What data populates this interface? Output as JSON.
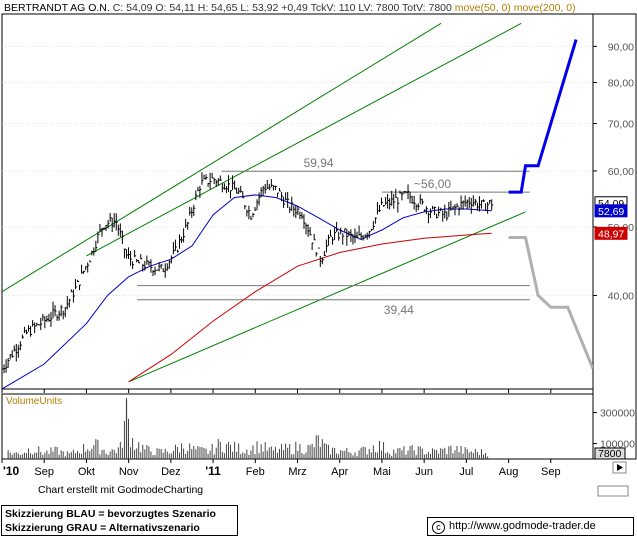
{
  "header": {
    "title": "BERTRANDT AG O.N.",
    "quote_parts": [
      "C: 54,09",
      "O: 54,11",
      "H: 54,65",
      "L: 53,92",
      "+0,49",
      "TckV: 110",
      "LV: 7800",
      "TotV: 7800"
    ],
    "ma_labels": [
      "move(50, 0)",
      "move(200, 0)"
    ]
  },
  "footer": {
    "credit": "Chart erstellt mit GodmodeCharting",
    "legend_blue": "Skizzierung BLAU = bevorzugtes Szenario",
    "legend_grey": "Skizzierung GRAU = Alternativszenario",
    "url": "http://www.godmode-trader.de",
    "copyright_symbol": "c"
  },
  "colors": {
    "price": "#000000",
    "ma50": "#0000cc",
    "ma200": "#cc0000",
    "channel": "#008000",
    "hlines": "#777777",
    "scenario_blue": "#0000ee",
    "scenario_grey": "#b0b0b0",
    "grid": "#d0d0d0",
    "header_ma": "#b08000",
    "volume_label": "#b08000"
  },
  "chart_data": {
    "type": "line",
    "y_scale": "log",
    "y_ticks": [
      "90,00",
      "80,00",
      "70,00",
      "60,00",
      "50,00",
      "40,00"
    ],
    "y_tick_values": [
      90,
      80,
      70,
      60,
      50,
      40
    ],
    "x_labels": [
      "'10",
      "Sep",
      "Okt",
      "Nov",
      "Dez",
      "'11",
      "Feb",
      "Mrz",
      "Apr",
      "Mai",
      "Jun",
      "Jul",
      "Aug",
      "Sep"
    ],
    "x_label_months": [
      0,
      1,
      2,
      3,
      4,
      5,
      6,
      7,
      8,
      9,
      10,
      11,
      12,
      13
    ],
    "x_range_months": [
      0,
      14
    ],
    "price_series": {
      "name": "BERTRANDT AG O.N.",
      "x": [
        0.0,
        0.3,
        0.6,
        0.9,
        1.2,
        1.5,
        1.8,
        2.1,
        2.4,
        2.7,
        2.95,
        3.2,
        3.5,
        3.8,
        4.1,
        4.4,
        4.7,
        5.0,
        5.3,
        5.6,
        5.9,
        6.2,
        6.5,
        6.8,
        7.1,
        7.35,
        7.55,
        7.8,
        8.1,
        8.4,
        8.7,
        9.0,
        9.3,
        9.6,
        9.9,
        10.2,
        10.5,
        10.8,
        11.1,
        11.4,
        11.6
      ],
      "y": [
        31.5,
        33.5,
        35.5,
        36.5,
        37.5,
        38.5,
        41.5,
        45.5,
        50.5,
        51.0,
        45.5,
        44.5,
        44.0,
        43.5,
        46.0,
        50.5,
        57.5,
        58.5,
        57.5,
        56.0,
        52.0,
        57.0,
        56.5,
        53.5,
        52.5,
        48.0,
        45.0,
        48.5,
        49.0,
        48.0,
        49.5,
        53.5,
        54.5,
        55.5,
        54.0,
        52.5,
        52.0,
        53.5,
        54.5,
        53.5,
        54.09
      ]
    },
    "series": [
      {
        "name": "move(50, 0)",
        "x": [
          0.0,
          1.0,
          2.0,
          2.5,
          3.0,
          3.5,
          4.0,
          4.5,
          5.0,
          5.5,
          6.0,
          6.5,
          7.0,
          7.5,
          8.0,
          8.5,
          9.0,
          9.5,
          10.0,
          10.5,
          11.0,
          11.6
        ],
        "y": [
          29.5,
          32.0,
          36.5,
          40.0,
          42.5,
          44.0,
          45.0,
          47.0,
          52.0,
          55.0,
          55.5,
          55.0,
          53.5,
          51.5,
          49.5,
          48.0,
          49.5,
          51.5,
          52.5,
          53.0,
          53.0,
          52.69
        ]
      },
      {
        "name": "move(200, 0)",
        "x": [
          3.0,
          4.0,
          5.0,
          6.0,
          7.0,
          8.0,
          9.0,
          10.0,
          11.0,
          11.6
        ],
        "y": [
          30.2,
          33.0,
          36.8,
          40.5,
          44.0,
          46.0,
          47.3,
          48.2,
          48.7,
          48.97
        ]
      }
    ],
    "channel_lines": [
      {
        "from": [
          0.0,
          40.5
        ],
        "to": [
          10.4,
          97.0
        ]
      },
      {
        "from": [
          2.0,
          45.5
        ],
        "to": [
          12.3,
          97.0
        ]
      },
      {
        "from": [
          3.0,
          30.2
        ],
        "to": [
          12.4,
          52.5
        ]
      }
    ],
    "horizontal_levels": [
      {
        "value": 59.94,
        "label": "59,94",
        "x_from": 5.2,
        "x_to": 12.5
      },
      {
        "value": 56.0,
        "label": "~56,00",
        "x_from": 9.0,
        "x_to": 12.5
      },
      {
        "value": 41.3,
        "label": "",
        "x_from": 3.2,
        "x_to": 12.5
      },
      {
        "value": 39.44,
        "label": "39,44",
        "x_from": 3.2,
        "x_to": 12.5
      }
    ],
    "scenario_blue": {
      "x": [
        12.0,
        12.3,
        12.4,
        12.7,
        13.6
      ],
      "y": [
        56.0,
        56.0,
        61.0,
        61.0,
        92.0
      ]
    },
    "scenario_grey": {
      "x": [
        12.0,
        12.4,
        12.7,
        13.0,
        13.4,
        14.0
      ],
      "y": [
        48.3,
        48.3,
        40.0,
        38.5,
        38.5,
        31.5
      ]
    },
    "value_labels": [
      {
        "text": "54,09",
        "value": 54.09,
        "bg": "#ffffff",
        "fg": "#000000"
      },
      {
        "text": "52,69",
        "value": 52.69,
        "bg": "#0000cc",
        "fg": "#ffffff"
      },
      {
        "text": "48,97",
        "value": 48.97,
        "bg": "#cc0000",
        "fg": "#ffffff"
      }
    ],
    "volume": {
      "label": "VolumeUnits",
      "ticks": [
        "300000",
        "100000"
      ],
      "tick_values": [
        300000,
        100000
      ],
      "last_label": "7800",
      "ymax": 420000,
      "x": [
        0.1,
        0.4,
        0.7,
        1.0,
        1.3,
        1.6,
        1.9,
        2.2,
        2.5,
        2.8,
        2.95,
        3.1,
        3.4,
        3.7,
        4.0,
        4.3,
        4.6,
        4.9,
        5.2,
        5.5,
        5.8,
        6.1,
        6.4,
        6.7,
        7.0,
        7.3,
        7.5,
        7.7,
        8.0,
        8.3,
        8.6,
        8.9,
        9.2,
        9.5,
        9.8,
        10.1,
        10.4,
        10.7,
        11.0,
        11.3,
        11.55
      ],
      "y": [
        60000,
        45000,
        90000,
        55000,
        70000,
        40000,
        85000,
        120000,
        60000,
        90000,
        380000,
        150000,
        80000,
        60000,
        70000,
        110000,
        75000,
        65000,
        130000,
        95000,
        80000,
        110000,
        70000,
        85000,
        100000,
        90000,
        160000,
        80000,
        70000,
        60000,
        75000,
        120000,
        65000,
        70000,
        80000,
        60000,
        70000,
        90000,
        65000,
        60000,
        50000
      ]
    }
  }
}
